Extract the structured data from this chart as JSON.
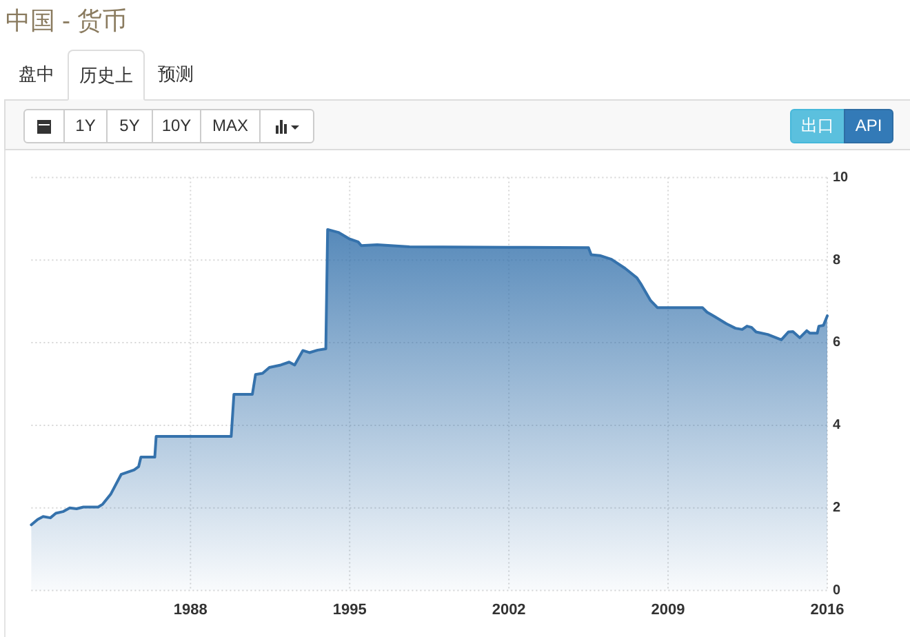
{
  "chart_data": {
    "type": "area",
    "title": "中国 - 货币",
    "annotations": [
      "盘中",
      "历史上",
      "预测",
      "1Y",
      "5Y",
      "10Y",
      "MAX",
      "出口",
      "API"
    ],
    "x": [
      1981.0,
      1981.28,
      1981.52,
      1981.84,
      1982.08,
      1982.39,
      1982.69,
      1982.99,
      1983.29,
      1983.94,
      1984.14,
      1984.5,
      1984.95,
      1985.52,
      1985.72,
      1985.82,
      1986.43,
      1986.49,
      1989.79,
      1989.91,
      1990.72,
      1990.86,
      1991.17,
      1991.47,
      1991.97,
      1992.34,
      1992.58,
      1992.94,
      1993.23,
      1993.59,
      1993.95,
      1994.03,
      1994.5,
      1995.0,
      1995.37,
      1995.51,
      1996.21,
      1997.63,
      2002.0,
      2005.5,
      2005.62,
      2006.0,
      2006.51,
      2007.11,
      2007.63,
      2007.83,
      2008.23,
      2008.53,
      2010.51,
      2010.71,
      2011.05,
      2011.56,
      2011.96,
      2012.26,
      2012.47,
      2012.67,
      2012.87,
      2013.38,
      2013.98,
      2014.29,
      2014.49,
      2014.79,
      2015.1,
      2015.24,
      2015.56,
      2015.63,
      2015.83,
      2016.0
    ],
    "series": [
      {
        "color": "#3572ac",
        "values": [
          1.59,
          1.72,
          1.79,
          1.76,
          1.87,
          1.91,
          2.0,
          1.98,
          2.02,
          2.02,
          2.09,
          2.34,
          2.81,
          2.92,
          3.0,
          3.23,
          3.23,
          3.73,
          3.73,
          4.75,
          4.75,
          5.23,
          5.26,
          5.4,
          5.46,
          5.53,
          5.46,
          5.81,
          5.76,
          5.82,
          5.85,
          8.74,
          8.67,
          8.51,
          8.44,
          8.35,
          8.37,
          8.32,
          8.31,
          8.3,
          8.13,
          8.11,
          8.02,
          7.8,
          7.57,
          7.4,
          7.02,
          6.85,
          6.85,
          6.74,
          6.63,
          6.46,
          6.35,
          6.32,
          6.4,
          6.37,
          6.26,
          6.2,
          6.07,
          6.26,
          6.27,
          6.12,
          6.29,
          6.23,
          6.23,
          6.4,
          6.42,
          6.65
        ]
      }
    ],
    "xlim": [
      1981,
      2016
    ],
    "xticks": [
      1988,
      1995,
      2002,
      2009,
      2016
    ],
    "ylim": [
      0,
      10
    ],
    "yticks": [
      0,
      2,
      4,
      6,
      8,
      10
    ],
    "grid": true
  }
}
